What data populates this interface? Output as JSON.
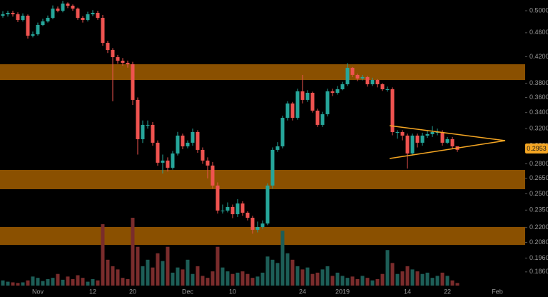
{
  "chart_data": {
    "type": "candlestick",
    "categories": [
      null,
      null,
      null,
      null,
      null,
      null,
      null,
      "Nov",
      null,
      null,
      null,
      null,
      null,
      null,
      null,
      null,
      null,
      null,
      "12",
      null,
      null,
      null,
      null,
      null,
      null,
      null,
      "20",
      null,
      null,
      null,
      null,
      null,
      null,
      null,
      null,
      null,
      null,
      "Dec",
      null,
      null,
      null,
      null,
      null,
      null,
      null,
      null,
      "10",
      null,
      null,
      null,
      null,
      null,
      null,
      null,
      null,
      null,
      null,
      null,
      null,
      null,
      "24",
      null,
      null,
      null,
      null,
      null,
      null,
      null,
      "2019",
      null,
      null,
      null,
      null,
      null,
      null,
      null,
      null,
      null,
      null,
      null,
      null,
      "14",
      null,
      null,
      null,
      null,
      null,
      null,
      null,
      "22",
      null,
      null,
      null,
      null,
      null,
      null,
      null,
      null,
      null,
      "Feb"
    ],
    "open": [
      0.4906,
      0.4933,
      0.496,
      0.4933,
      0.4828,
      0.4906,
      0.4549,
      0.4573,
      0.4737,
      0.4802,
      0.4867,
      0.504,
      0.5,
      0.5137,
      0.5095,
      0.504,
      0.4867,
      0.4828,
      0.4933,
      0.496,
      0.4867,
      0.4427,
      0.4309,
      0.4194,
      0.4138,
      0.4105,
      0.4083,
      0.3567,
      0.3074,
      0.3245,
      0.3245,
      0.3033,
      0.2812,
      0.2835,
      0.2759,
      0.2912,
      0.3116,
      0.2992,
      0.3033,
      0.3158,
      0.2952,
      0.2835,
      0.2782,
      0.2579,
      0.2346,
      0.2346,
      0.2378,
      0.2314,
      0.241,
      0.2327,
      0.2283,
      0.2181,
      0.2204,
      0.2234,
      0.2579,
      0.2952,
      0.2992,
      0.3333,
      0.3519,
      0.3333,
      0.3685,
      0.3567,
      0.3664,
      0.3425,
      0.3245,
      0.3379,
      0.3685,
      0.3664,
      0.3714,
      0.3785,
      0.4028,
      0.3921,
      0.3868,
      0.3889,
      0.3785,
      0.3847,
      0.3785,
      0.3714,
      0.3714,
      0.3158,
      0.3158,
      0.3116,
      0.2912,
      0.3116,
      0.3033,
      0.3116,
      0.3133,
      0.3158,
      0.3158,
      0.3033,
      0.3074,
      0.2992,
      null,
      null,
      null,
      null,
      null,
      null,
      null,
      null
    ],
    "high": [
      0.499,
      0.5,
      0.5,
      0.497,
      0.495,
      0.493,
      0.462,
      0.478,
      0.485,
      0.491,
      0.51,
      0.508,
      0.519,
      0.516,
      0.512,
      0.506,
      0.49,
      0.498,
      0.501,
      0.5,
      0.492,
      0.446,
      0.434,
      0.423,
      0.418,
      0.414,
      0.412,
      0.36,
      0.33,
      0.33,
      0.328,
      0.306,
      0.29,
      0.287,
      0.294,
      0.316,
      0.314,
      0.306,
      0.32,
      0.318,
      0.298,
      0.287,
      0.282,
      0.261,
      0.24,
      0.242,
      0.24,
      0.245,
      0.243,
      0.234,
      0.23,
      0.225,
      0.226,
      0.26,
      0.298,
      0.304,
      0.336,
      0.355,
      0.354,
      0.372,
      0.392,
      0.37,
      0.368,
      0.345,
      0.341,
      0.372,
      0.372,
      0.376,
      0.382,
      0.41,
      0.404,
      0.394,
      0.392,
      0.391,
      0.388,
      0.386,
      0.38,
      0.375,
      0.374,
      0.318,
      0.318,
      0.314,
      0.314,
      0.314,
      0.315,
      0.318,
      0.323,
      0.32,
      0.318,
      0.31,
      0.31,
      0.299,
      null,
      null,
      null,
      null,
      null,
      null,
      null,
      null
    ],
    "low": [
      0.487,
      0.489,
      0.489,
      0.479,
      0.48,
      0.45,
      0.452,
      0.455,
      0.472,
      0.478,
      0.484,
      0.497,
      0.497,
      0.505,
      0.5,
      0.483,
      0.478,
      0.48,
      0.49,
      0.483,
      0.438,
      0.426,
      0.355,
      0.409,
      0.406,
      0.403,
      0.35,
      0.29,
      0.303,
      0.32,
      0.3,
      0.278,
      0.27,
      0.272,
      0.274,
      0.289,
      0.296,
      0.297,
      0.3,
      0.292,
      0.28,
      0.265,
      0.255,
      0.232,
      0.232,
      0.233,
      0.228,
      0.229,
      0.23,
      0.226,
      0.215,
      0.216,
      0.219,
      0.222,
      0.255,
      0.293,
      0.297,
      0.33,
      0.33,
      0.331,
      0.352,
      0.354,
      0.34,
      0.322,
      0.322,
      0.335,
      0.362,
      0.364,
      0.37,
      0.376,
      0.389,
      0.383,
      0.384,
      0.375,
      0.376,
      0.374,
      0.369,
      0.368,
      0.312,
      0.308,
      0.306,
      0.275,
      0.289,
      0.298,
      0.3,
      0.309,
      0.31,
      0.312,
      0.3,
      0.302,
      0.296,
      0.293,
      null,
      null,
      null,
      null,
      null,
      null,
      null,
      null
    ],
    "close": [
      0.4933,
      0.496,
      0.4933,
      0.4828,
      0.4906,
      0.4549,
      0.4573,
      0.4737,
      0.4802,
      0.4867,
      0.504,
      0.5,
      0.5137,
      0.5095,
      0.504,
      0.4867,
      0.4828,
      0.4933,
      0.496,
      0.4867,
      0.4427,
      0.4309,
      0.4194,
      0.4138,
      0.4105,
      0.4083,
      0.3567,
      0.3074,
      0.3245,
      0.3245,
      0.3033,
      0.2812,
      0.2835,
      0.2759,
      0.2912,
      0.3116,
      0.2992,
      0.3033,
      0.3158,
      0.2952,
      0.2835,
      0.2782,
      0.2579,
      0.2346,
      0.2346,
      0.2378,
      0.2314,
      0.241,
      0.2327,
      0.2283,
      0.2181,
      0.2204,
      0.2234,
      0.2579,
      0.2952,
      0.2992,
      0.3333,
      0.3519,
      0.3333,
      0.3685,
      0.3567,
      0.3664,
      0.3425,
      0.3245,
      0.3379,
      0.3685,
      0.3664,
      0.3714,
      0.3785,
      0.4028,
      0.3921,
      0.3868,
      0.3889,
      0.3785,
      0.3847,
      0.3785,
      0.3714,
      0.3714,
      0.3158,
      0.3158,
      0.3116,
      0.2912,
      0.3116,
      0.3033,
      0.3116,
      0.3133,
      0.3158,
      0.3158,
      0.3033,
      0.3074,
      0.2992,
      0.2953,
      null,
      null,
      null,
      null,
      null,
      null,
      null,
      null
    ],
    "volume": [
      8,
      6,
      5,
      4,
      5,
      8,
      14,
      12,
      7,
      10,
      12,
      18,
      9,
      14,
      10,
      16,
      12,
      6,
      10,
      8,
      95,
      40,
      30,
      25,
      12,
      10,
      105,
      60,
      30,
      40,
      28,
      50,
      38,
      60,
      20,
      28,
      25,
      40,
      18,
      30,
      15,
      12,
      22,
      60,
      28,
      22,
      18,
      20,
      22,
      18,
      12,
      14,
      20,
      45,
      40,
      35,
      85,
      50,
      40,
      30,
      25,
      28,
      18,
      20,
      25,
      30,
      15,
      20,
      15,
      12,
      14,
      10,
      15,
      12,
      8,
      10,
      18,
      55,
      35,
      18,
      22,
      30,
      25,
      22,
      18,
      20,
      12,
      15,
      20,
      15,
      8,
      4,
      null,
      null,
      null,
      null,
      null,
      null,
      null,
      null
    ],
    "up_color": "#26a69a",
    "down_color": "#ef5350",
    "up_volume_color": "#1d5e57",
    "down_volume_color": "#7a2c2c",
    "yscale": "log",
    "ylim": [
      0.1766,
      0.5207
    ],
    "yticks": [
      {
        "value": 0.5,
        "label": "0.5000"
      },
      {
        "value": 0.46,
        "label": "0.4600"
      },
      {
        "value": 0.42,
        "label": "0.4200"
      },
      {
        "value": 0.38,
        "label": "0.3800"
      },
      {
        "value": 0.36,
        "label": "0.3600"
      },
      {
        "value": 0.34,
        "label": "0.3400"
      },
      {
        "value": 0.32,
        "label": "0.3200"
      },
      {
        "value": 0.3,
        "label": "0.3000"
      },
      {
        "value": 0.28,
        "label": "0.2800"
      },
      {
        "value": 0.265,
        "label": "0.2650"
      },
      {
        "value": 0.25,
        "label": "0.2500"
      },
      {
        "value": 0.235,
        "label": "0.2350"
      },
      {
        "value": 0.22,
        "label": "0.2200"
      },
      {
        "value": 0.208,
        "label": "0.2080"
      },
      {
        "value": 0.196,
        "label": "0.1960"
      },
      {
        "value": 0.186,
        "label": "0.1860"
      }
    ],
    "last_price_label": "0.2953"
  }
}
